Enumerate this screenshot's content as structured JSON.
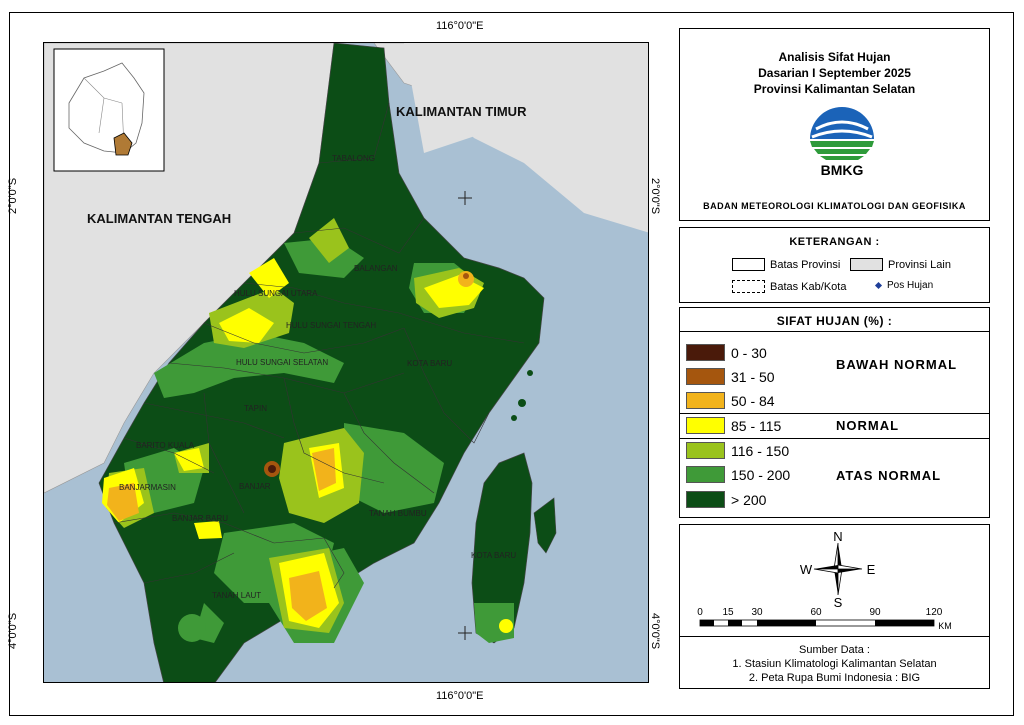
{
  "coords": {
    "top_lon": "116°0'0\"E",
    "bottom_lon": "116°0'0\"E",
    "left_lat_top": "2°0'0\"S",
    "left_lat_bottom": "4°0'0\"S",
    "right_lat_top": "2°0'0\"S",
    "right_lat_bottom": "4°0'0\"S"
  },
  "map": {
    "region_labels": [
      "KALIMANTAN TIMUR",
      "KALIMANTAN TENGAH"
    ],
    "district_labels": [
      "TABALONG",
      "BALANGAN",
      "HULU SUNGAI UTARA",
      "HULU SUNGAI TENGAH",
      "HULU SUNGAI SELATAN",
      "KOTA BARU",
      "TAPIN",
      "BARITO KUALA",
      "BANJARMASIN",
      "BANJAR",
      "BANJAR BARU",
      "TANAH BUMBU",
      "KOTA BARU",
      "TANAH LAUT"
    ]
  },
  "title": {
    "line1": "Analisis Sifat Hujan",
    "line2": "Dasarian I September 2025",
    "line3": "Provinsi Kalimantan Selatan",
    "logo_text": "BMKG",
    "agency": "BADAN METEOROLOGI KLIMATOLOGI DAN GEOFISIKA"
  },
  "keterangan": {
    "heading": "KETERANGAN :",
    "batas_provinsi": "Batas Provinsi",
    "provinsi_lain": "Provinsi Lain",
    "batas_kab": "Batas Kab/Kota",
    "pos_hujan": "Pos Hujan"
  },
  "legend": {
    "heading": "SIFAT HUJAN (%) :",
    "classes": [
      {
        "label": "0 - 30",
        "color": "#4a1a0a"
      },
      {
        "label": "31 - 50",
        "color": "#a5560e"
      },
      {
        "label": "50 - 84",
        "color": "#f2b31b"
      },
      {
        "label": "85 - 115",
        "color": "#ffff00"
      },
      {
        "label": "116 - 150",
        "color": "#9ac31c"
      },
      {
        "label": "150 - 200",
        "color": "#3f9a38"
      },
      {
        "label": "> 200",
        "color": "#0c4d16"
      }
    ],
    "categories": [
      "BAWAH NORMAL",
      "NORMAL",
      "ATAS NORMAL"
    ]
  },
  "compass": {
    "n": "N",
    "s": "S",
    "e": "E",
    "w": "W"
  },
  "scalebar": {
    "ticks": [
      "0",
      "15",
      "30",
      "60",
      "90",
      "120"
    ],
    "unit": "KM"
  },
  "source": {
    "heading": "Sumber Data :",
    "line1": "1. Stasiun Klimatologi Kalimantan Selatan",
    "line2": "2. Peta Rupa Bumi Indonesia : BIG"
  }
}
